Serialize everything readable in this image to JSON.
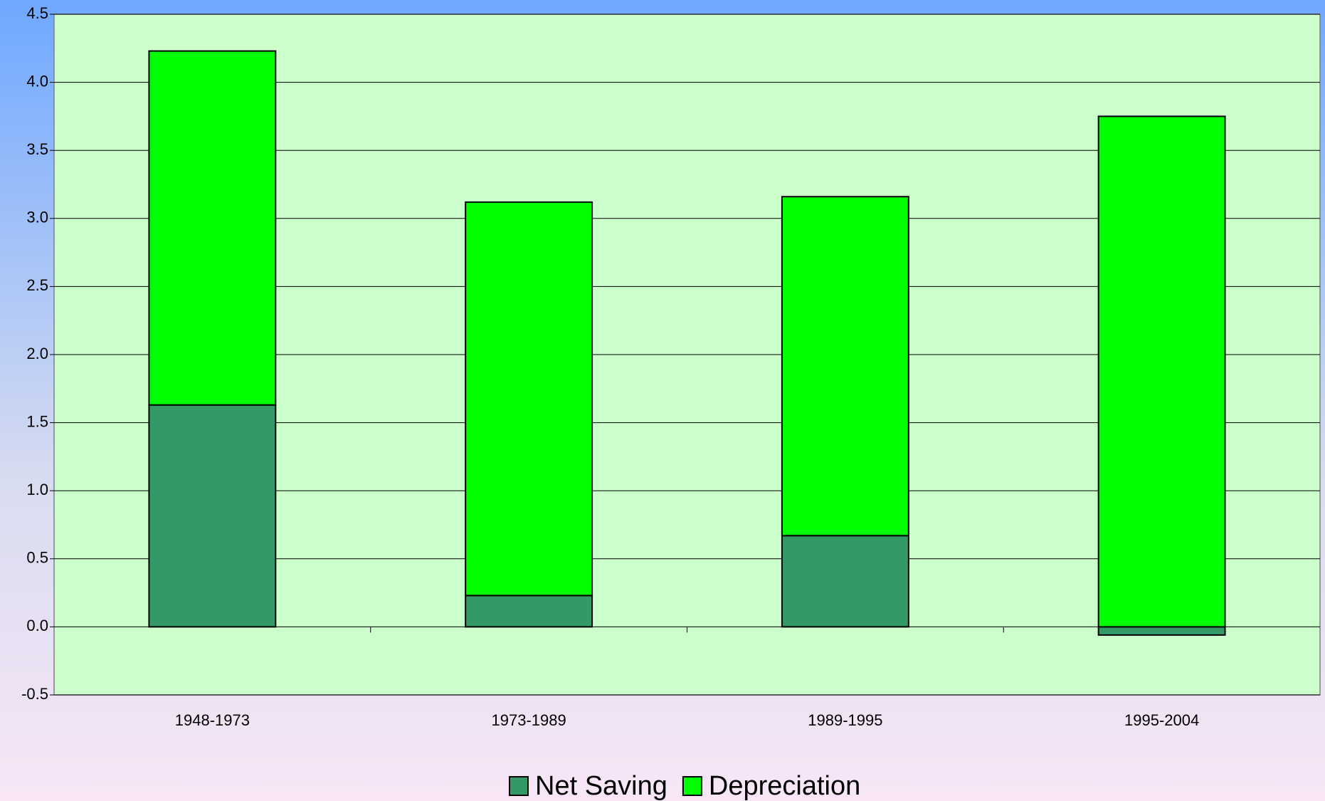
{
  "chart_data": {
    "type": "stacked_bar",
    "categories": [
      "1948-1973",
      "1973-1989",
      "1989-1995",
      "1995-2004"
    ],
    "series": [
      {
        "name": "Net Saving",
        "color": "#339966",
        "values": [
          1.63,
          0.23,
          0.67,
          -0.06
        ]
      },
      {
        "name": "Depreciation",
        "color": "#00ff00",
        "values": [
          2.6,
          2.89,
          2.49,
          3.75
        ]
      }
    ],
    "ylim": [
      -0.5,
      4.5
    ],
    "yticks": [
      -0.5,
      {
        "value": 0,
        "label": "0.0"
      },
      0.5,
      {
        "value": 1,
        "label": "1.0"
      },
      1.5,
      {
        "value": 2,
        "label": "2.0"
      },
      2.5,
      {
        "value": 3,
        "label": "3.0"
      },
      3.5,
      {
        "value": 4,
        "label": "4.0"
      },
      4.5
    ],
    "grid": true,
    "legend": "bottom"
  }
}
